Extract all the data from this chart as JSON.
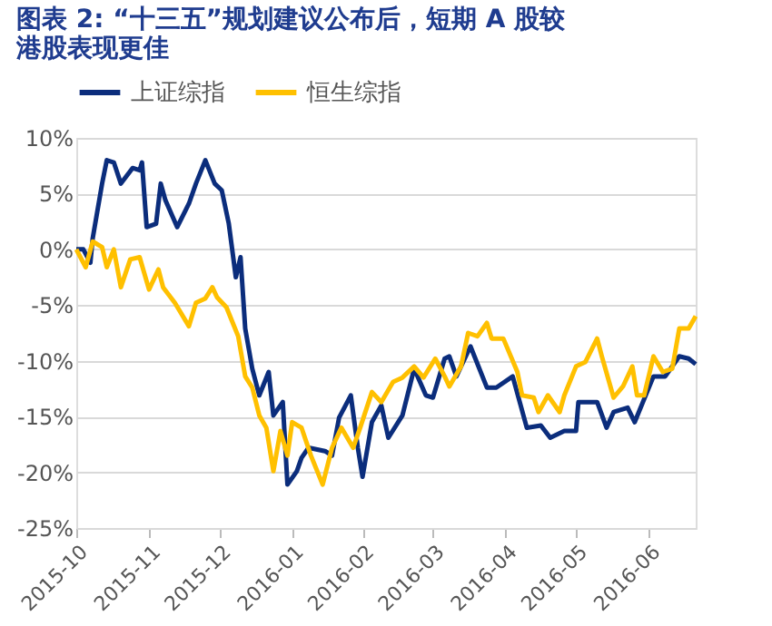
{
  "chart_data": {
    "type": "line",
    "title": "图表 2: “十三五”规划建议公布后，短期 A 股较港股表现更佳",
    "xlim": [
      "2015-10-30",
      "2016-07-20"
    ],
    "xticks": [
      {
        "value": "2015-10-30",
        "label": "2015-10"
      },
      {
        "value": "2015-11-30",
        "label": "2015-11"
      },
      {
        "value": "2015-12-30",
        "label": "2015-12"
      },
      {
        "value": "2016-01-30",
        "label": "2016-01"
      },
      {
        "value": "2016-02-29",
        "label": "2016-02"
      },
      {
        "value": "2016-03-30",
        "label": "2016-03"
      },
      {
        "value": "2016-04-30",
        "label": "2016-04"
      },
      {
        "value": "2016-05-30",
        "label": "2016-05"
      },
      {
        "value": "2016-06-30",
        "label": "2016-06"
      }
    ],
    "ylim": [
      -25,
      10
    ],
    "yticks": [
      {
        "value": -25,
        "label": "-25%"
      },
      {
        "value": -20,
        "label": "-20%"
      },
      {
        "value": -15,
        "label": "-15%"
      },
      {
        "value": -10,
        "label": "-10%"
      },
      {
        "value": -5,
        "label": "-5%"
      },
      {
        "value": 0,
        "label": "0%"
      },
      {
        "value": 5,
        "label": "5%"
      },
      {
        "value": 10,
        "label": "10%"
      }
    ],
    "grid": "y",
    "legend": "top",
    "line_style": "solid",
    "marker": "none",
    "series": [
      {
        "name": "上证综指",
        "color": "#0b2d7c",
        "x": [
          "2015-10-30",
          "2015-11-02",
          "2015-11-05",
          "2015-11-06",
          "2015-11-10",
          "2015-11-12",
          "2015-11-15",
          "2015-11-18",
          "2015-11-23",
          "2015-11-26",
          "2015-11-27",
          "2015-11-29",
          "2015-12-03",
          "2015-12-05",
          "2015-12-07",
          "2015-12-12",
          "2015-12-17",
          "2015-12-20",
          "2015-12-24",
          "2015-12-28",
          "2015-12-31",
          "2016-01-03",
          "2016-01-06",
          "2016-01-08",
          "2016-01-10",
          "2016-01-13",
          "2016-01-16",
          "2016-01-20",
          "2016-01-22",
          "2016-01-26",
          "2016-01-28",
          "2016-02-01",
          "2016-02-03",
          "2016-02-06",
          "2016-02-13",
          "2016-02-16",
          "2016-02-19",
          "2016-02-24",
          "2016-02-27",
          "2016-02-29",
          "2016-03-04",
          "2016-03-08",
          "2016-03-11",
          "2016-03-17",
          "2016-03-22",
          "2016-03-27",
          "2016-03-30",
          "2016-04-04",
          "2016-04-06",
          "2016-04-09",
          "2016-04-15",
          "2016-04-22",
          "2016-04-26",
          "2016-05-03",
          "2016-05-09",
          "2016-05-15",
          "2016-05-19",
          "2016-05-25",
          "2016-05-30",
          "2016-05-31",
          "2016-06-08",
          "2016-06-12",
          "2016-06-15",
          "2016-06-21",
          "2016-06-24",
          "2016-07-02",
          "2016-07-07",
          "2016-07-13",
          "2016-07-17",
          "2016-07-20"
        ],
        "values": [
          0,
          0,
          -1.2,
          1,
          5.9,
          8,
          7.8,
          5.9,
          7.3,
          7.1,
          7.8,
          2,
          2.3,
          5.9,
          4.4,
          2,
          4.1,
          5.9,
          8,
          5.9,
          5.3,
          2.3,
          -2.5,
          -0.7,
          -7.1,
          -10.7,
          -13.1,
          -11,
          -14.9,
          -13.7,
          -21.1,
          -19.9,
          -18.7,
          -17.8,
          -18.1,
          -18.5,
          -15.1,
          -13.1,
          -17.8,
          -20.4,
          -15.5,
          -14,
          -16.9,
          -14.9,
          -10.7,
          -13.1,
          -13.3,
          -9.8,
          -9.6,
          -11.4,
          -8.7,
          -12.4,
          -12.4,
          -11.4,
          -16,
          -15.8,
          -16.9,
          -16.3,
          -16.3,
          -13.7,
          -13.7,
          -16,
          -14.6,
          -14.2,
          -15.5,
          -11.4,
          -11.4,
          -9.6,
          -9.8,
          -10.3
        ]
      },
      {
        "name": "恒生综指",
        "color": "#ffc000",
        "x": [
          "2015-10-30",
          "2015-11-03",
          "2015-11-06",
          "2015-11-10",
          "2015-11-12",
          "2015-11-15",
          "2015-11-18",
          "2015-11-22",
          "2015-11-26",
          "2015-11-30",
          "2015-12-04",
          "2015-12-06",
          "2015-12-11",
          "2015-12-17",
          "2015-12-20",
          "2015-12-24",
          "2015-12-27",
          "2015-12-29",
          "2016-01-02",
          "2016-01-07",
          "2016-01-10",
          "2016-01-13",
          "2016-01-16",
          "2016-01-19",
          "2016-01-22",
          "2016-01-25",
          "2016-01-28",
          "2016-01-30",
          "2016-02-03",
          "2016-02-07",
          "2016-02-12",
          "2016-02-16",
          "2016-02-20",
          "2016-02-25",
          "2016-02-28",
          "2016-03-04",
          "2016-03-08",
          "2016-03-13",
          "2016-03-17",
          "2016-03-22",
          "2016-03-26",
          "2016-03-31",
          "2016-04-04",
          "2016-04-06",
          "2016-04-11",
          "2016-04-14",
          "2016-04-18",
          "2016-04-22",
          "2016-04-24",
          "2016-04-29",
          "2016-05-05",
          "2016-05-07",
          "2016-05-12",
          "2016-05-14",
          "2016-05-18",
          "2016-05-23",
          "2016-05-25",
          "2016-05-30",
          "2016-06-03",
          "2016-06-08",
          "2016-06-10",
          "2016-06-15",
          "2016-06-19",
          "2016-06-23",
          "2016-06-25",
          "2016-06-28",
          "2016-07-02",
          "2016-07-06",
          "2016-07-10",
          "2016-07-13",
          "2016-07-17",
          "2016-07-20"
        ],
        "values": [
          0,
          -1.6,
          0.7,
          0.2,
          -1.6,
          0,
          -3.4,
          -0.9,
          -0.7,
          -3.6,
          -1.8,
          -3.4,
          -4.8,
          -6.9,
          -4.8,
          -4.4,
          -3.4,
          -4.3,
          -5.2,
          -7.8,
          -11.4,
          -12.4,
          -14.9,
          -16,
          -19.9,
          -16.3,
          -18.5,
          -15.5,
          -16,
          -18.5,
          -21.1,
          -17.8,
          -16,
          -17.8,
          -16,
          -12.8,
          -13.7,
          -11.9,
          -11.5,
          -10.5,
          -11.5,
          -9.8,
          -11.4,
          -12.3,
          -10.5,
          -7.5,
          -7.8,
          -6.6,
          -8,
          -8,
          -11,
          -13.1,
          -13.3,
          -14.6,
          -13.1,
          -14.6,
          -13.1,
          -10.5,
          -10.1,
          -8,
          -9.6,
          -13.3,
          -12.3,
          -10.5,
          -13.1,
          -13.1,
          -9.6,
          -11,
          -10.7,
          -7.1,
          -7.1,
          -6
        ]
      }
    ]
  }
}
